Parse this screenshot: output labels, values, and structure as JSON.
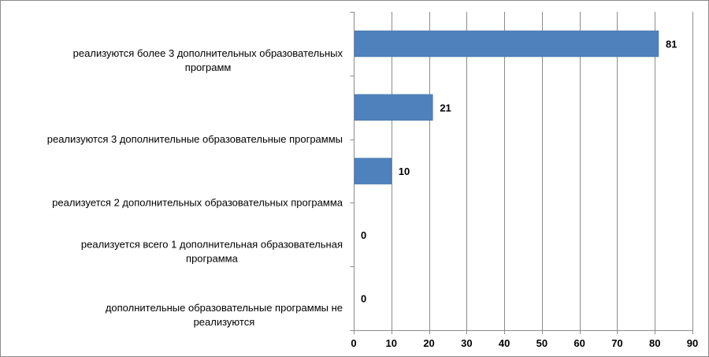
{
  "chart_data": {
    "type": "bar",
    "orientation": "horizontal",
    "categories": [
      [
        "реализуются более 3 дополнительных образовательных",
        "программ"
      ],
      [
        "реализуются 3 дополнительные образовательные программы"
      ],
      [
        "реализуется 2 дополнительных образовательных программа"
      ],
      [
        "реализуется всего 1 дополнительная образовательная",
        "программа"
      ],
      [
        "дополнительные образовательные программы не",
        "реализуются"
      ]
    ],
    "values": [
      81,
      21,
      10,
      0,
      0
    ],
    "xlim": [
      0,
      90
    ],
    "xticks": [
      0,
      10,
      20,
      30,
      40,
      50,
      60,
      70,
      80,
      90
    ],
    "grid": "vertical",
    "legend": "none",
    "bar_color": "#4f81bd",
    "title": "",
    "xlabel": "",
    "ylabel": ""
  }
}
